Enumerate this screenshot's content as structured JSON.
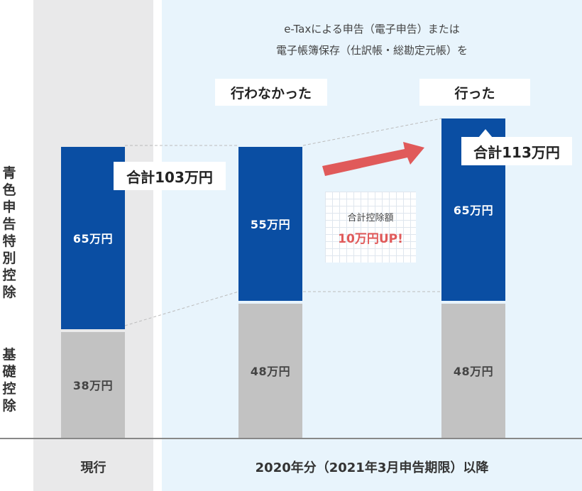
{
  "colors": {
    "current_bg": "#e9e9ea",
    "future_bg": "#e8f4fc",
    "special_deduction": "#0a4ea3",
    "basic_deduction": "#c2c2c2",
    "arrow": "#e05a5a",
    "up_text": "#e05a5a"
  },
  "header": {
    "line1": "e-Taxによる申告（電子申告）または",
    "line2": "電子帳簿保存（仕訳帳・総勘定元帳）を"
  },
  "categories": {
    "not_done": "行わなかった",
    "done": "行った"
  },
  "row_labels": {
    "special": "青色申告特別控除",
    "basic": "基礎控除"
  },
  "period_labels": {
    "current": "現行",
    "future": "2020年分（2021年3月申告期限）以降"
  },
  "totals": {
    "current": "合計103万円",
    "done": "合計113万円"
  },
  "callout": {
    "title": "合計控除額",
    "value": "10万円UP!"
  },
  "chart_data": {
    "type": "bar",
    "stacked": true,
    "unit": "万円",
    "categories": [
      "現行",
      "行わなかった",
      "行った"
    ],
    "series": [
      {
        "name": "基礎控除",
        "values": [
          38,
          48,
          48
        ],
        "labels": [
          "38万円",
          "48万円",
          "48万円"
        ]
      },
      {
        "name": "青色申告特別控除",
        "values": [
          65,
          55,
          65
        ],
        "labels": [
          "65万円",
          "55万円",
          "65万円"
        ]
      }
    ],
    "ylim": [
      0,
      113
    ],
    "grid": false,
    "legend": "none"
  }
}
